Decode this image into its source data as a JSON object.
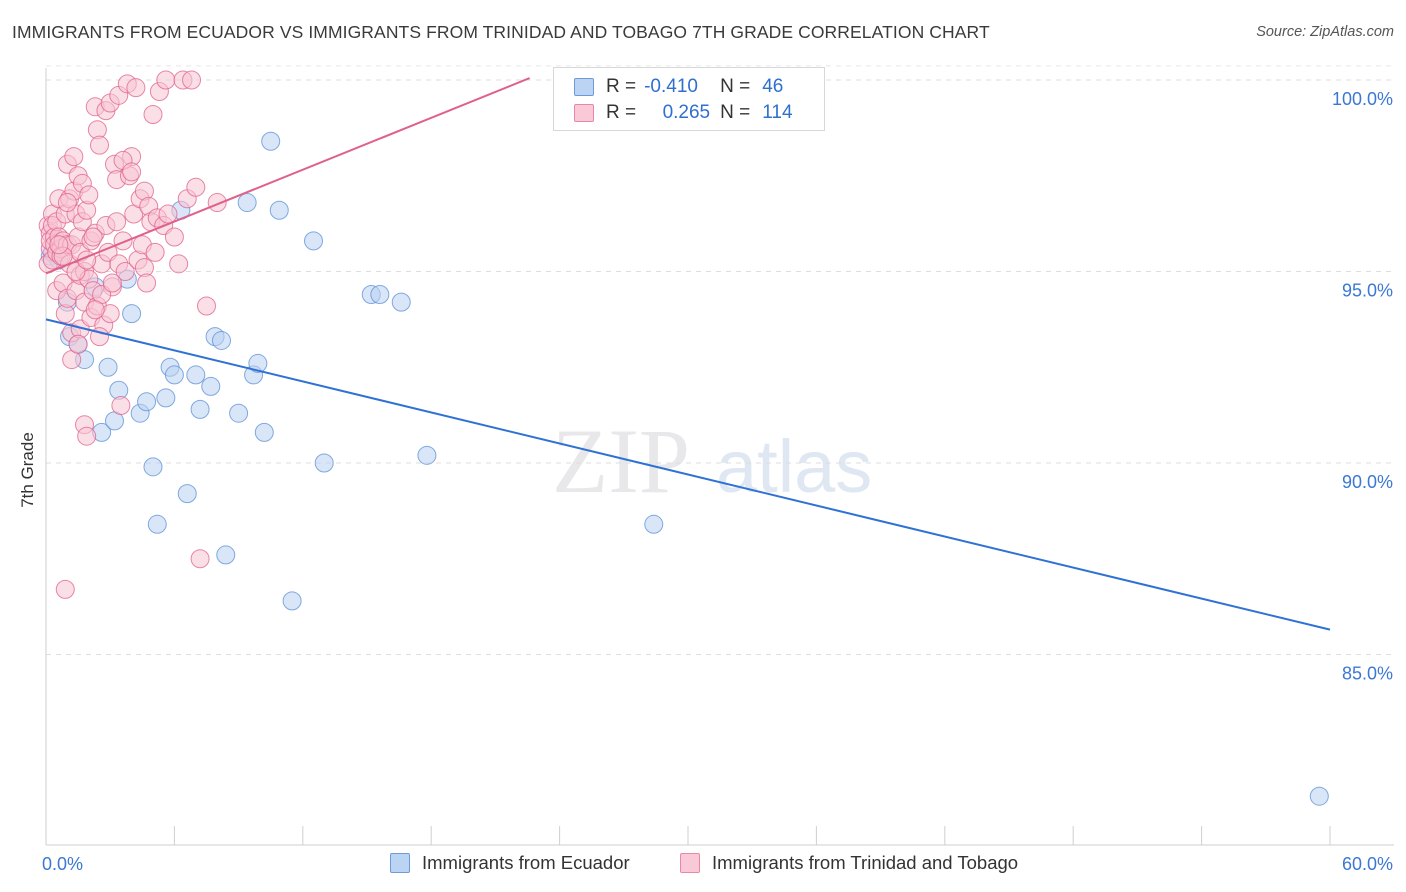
{
  "title": "IMMIGRANTS FROM ECUADOR VS IMMIGRANTS FROM TRINIDAD AND TOBAGO 7TH GRADE CORRELATION CHART",
  "source": "Source: ZipAtlas.com",
  "watermark": {
    "zip": "ZIP",
    "atlas": "atlas"
  },
  "legend": {
    "r_label": "R =",
    "n_label": "N =",
    "rows": [
      {
        "r": "-0.410",
        "n": "46",
        "color": "#a9c7ef"
      },
      {
        "r": "0.265",
        "n": "114",
        "color": "#f5b3c8"
      }
    ]
  },
  "bottom_legend": [
    "Immigrants from Ecuador",
    "Immigrants from Trinidad and Tobago"
  ],
  "chart_data": {
    "type": "scatter",
    "title": "IMMIGRANTS FROM ECUADOR VS IMMIGRANTS FROM TRINIDAD AND TOBAGO 7TH GRADE CORRELATION CHART",
    "xlabel": "",
    "ylabel": "7th Grade",
    "xlim": [
      0,
      60
    ],
    "ylim": [
      80.5,
      100.5
    ],
    "x_ticks": [
      "0.0%",
      "60.0%"
    ],
    "y_ticks": [
      {
        "value": 85,
        "label": "85.0%"
      },
      {
        "value": 90,
        "label": "90.0%"
      },
      {
        "value": 95,
        "label": "95.0%"
      },
      {
        "value": 100,
        "label": "100.0%"
      }
    ],
    "grid": "horizontal dashed",
    "legend_position": "top-center",
    "series": [
      {
        "name": "Immigrants from Ecuador",
        "color": "#5b8fd6",
        "fill": "#b9d2f2",
        "trend": {
          "x": [
            0,
            60
          ],
          "y": [
            93.75,
            85.65
          ]
        },
        "points": [
          [
            0.2,
            95.4
          ],
          [
            0.6,
            95.3
          ],
          [
            1.0,
            94.2
          ],
          [
            1.1,
            93.3
          ],
          [
            1.5,
            93.1
          ],
          [
            1.8,
            92.7
          ],
          [
            2.3,
            94.6
          ],
          [
            2.6,
            90.8
          ],
          [
            2.9,
            92.5
          ],
          [
            3.2,
            91.1
          ],
          [
            3.4,
            91.9
          ],
          [
            3.8,
            94.8
          ],
          [
            4.0,
            93.9
          ],
          [
            4.4,
            91.3
          ],
          [
            4.7,
            91.6
          ],
          [
            5.0,
            89.9
          ],
          [
            5.2,
            88.4
          ],
          [
            5.6,
            91.7
          ],
          [
            5.8,
            92.5
          ],
          [
            6.0,
            92.3
          ],
          [
            6.3,
            96.6
          ],
          [
            6.6,
            89.2
          ],
          [
            7.0,
            92.3
          ],
          [
            7.2,
            91.4
          ],
          [
            7.7,
            92.0
          ],
          [
            7.9,
            93.3
          ],
          [
            8.2,
            93.2
          ],
          [
            8.4,
            87.6
          ],
          [
            9.0,
            91.3
          ],
          [
            9.4,
            96.8
          ],
          [
            9.7,
            92.3
          ],
          [
            9.9,
            92.6
          ],
          [
            10.2,
            90.8
          ],
          [
            10.5,
            98.4
          ],
          [
            10.9,
            96.6
          ],
          [
            11.5,
            86.4
          ],
          [
            12.5,
            95.8
          ],
          [
            13.0,
            90.0
          ],
          [
            15.2,
            94.4
          ],
          [
            15.6,
            94.4
          ],
          [
            16.6,
            94.2
          ],
          [
            17.8,
            90.2
          ],
          [
            25.3,
            100.0
          ],
          [
            28.4,
            88.4
          ],
          [
            59.5,
            81.3
          ],
          [
            0.3,
            95.5
          ]
        ]
      },
      {
        "name": "Immigrants from Trinidad and Tobago",
        "color": "#e0608c",
        "fill": "#f8c4d4",
        "trend": {
          "x": [
            0,
            22.6
          ],
          "y": [
            94.95,
            100.05
          ]
        },
        "points": [
          [
            0.1,
            95.2
          ],
          [
            0.1,
            96.2
          ],
          [
            0.2,
            95.6
          ],
          [
            0.2,
            96.0
          ],
          [
            0.2,
            95.8
          ],
          [
            0.3,
            96.5
          ],
          [
            0.3,
            95.3
          ],
          [
            0.3,
            96.2
          ],
          [
            0.4,
            95.9
          ],
          [
            0.4,
            95.7
          ],
          [
            0.5,
            96.3
          ],
          [
            0.5,
            94.5
          ],
          [
            0.5,
            95.5
          ],
          [
            0.6,
            95.9
          ],
          [
            0.6,
            96.9
          ],
          [
            0.7,
            95.6
          ],
          [
            0.7,
            95.4
          ],
          [
            0.8,
            94.7
          ],
          [
            0.8,
            95.8
          ],
          [
            0.9,
            93.9
          ],
          [
            0.9,
            96.5
          ],
          [
            1.0,
            95.7
          ],
          [
            1.0,
            97.8
          ],
          [
            1.0,
            94.3
          ],
          [
            1.1,
            95.2
          ],
          [
            1.1,
            96.9
          ],
          [
            1.2,
            93.4
          ],
          [
            1.2,
            95.7
          ],
          [
            1.3,
            97.1
          ],
          [
            1.3,
            98.0
          ],
          [
            1.4,
            94.5
          ],
          [
            1.4,
            96.5
          ],
          [
            1.5,
            95.9
          ],
          [
            1.5,
            97.5
          ],
          [
            1.6,
            93.5
          ],
          [
            1.6,
            94.9
          ],
          [
            1.6,
            95.5
          ],
          [
            1.7,
            96.3
          ],
          [
            1.7,
            97.3
          ],
          [
            1.8,
            94.2
          ],
          [
            1.8,
            95.0
          ],
          [
            1.8,
            91.0
          ],
          [
            1.9,
            90.7
          ],
          [
            1.9,
            96.6
          ],
          [
            2.0,
            94.8
          ],
          [
            2.0,
            97.0
          ],
          [
            2.1,
            95.8
          ],
          [
            2.1,
            93.8
          ],
          [
            2.2,
            94.5
          ],
          [
            2.3,
            99.3
          ],
          [
            2.3,
            96.0
          ],
          [
            2.4,
            98.7
          ],
          [
            2.4,
            94.1
          ],
          [
            2.5,
            98.3
          ],
          [
            2.6,
            95.2
          ],
          [
            2.7,
            93.6
          ],
          [
            2.8,
            99.2
          ],
          [
            2.8,
            96.2
          ],
          [
            2.9,
            95.5
          ],
          [
            3.0,
            93.9
          ],
          [
            3.0,
            99.4
          ],
          [
            3.1,
            94.6
          ],
          [
            3.2,
            97.8
          ],
          [
            3.3,
            96.3
          ],
          [
            3.3,
            97.4
          ],
          [
            3.4,
            99.6
          ],
          [
            3.4,
            95.2
          ],
          [
            3.5,
            91.5
          ],
          [
            3.6,
            95.8
          ],
          [
            3.7,
            95.0
          ],
          [
            3.8,
            99.9
          ],
          [
            3.9,
            97.5
          ],
          [
            4.0,
            98.0
          ],
          [
            4.1,
            96.5
          ],
          [
            4.2,
            99.8
          ],
          [
            4.3,
            95.3
          ],
          [
            4.4,
            96.9
          ],
          [
            4.5,
            95.7
          ],
          [
            4.6,
            97.1
          ],
          [
            4.6,
            95.1
          ],
          [
            4.7,
            94.7
          ],
          [
            4.8,
            96.7
          ],
          [
            4.9,
            96.3
          ],
          [
            5.0,
            99.1
          ],
          [
            5.1,
            95.5
          ],
          [
            5.2,
            96.4
          ],
          [
            5.3,
            99.7
          ],
          [
            5.5,
            96.2
          ],
          [
            5.6,
            100.0
          ],
          [
            5.7,
            96.5
          ],
          [
            6.0,
            95.9
          ],
          [
            6.2,
            95.2
          ],
          [
            6.4,
            100.0
          ],
          [
            6.6,
            96.9
          ],
          [
            6.8,
            100.0
          ],
          [
            7.0,
            97.2
          ],
          [
            7.2,
            87.5
          ],
          [
            7.5,
            94.1
          ],
          [
            8.0,
            96.8
          ],
          [
            0.9,
            86.7
          ],
          [
            1.2,
            92.7
          ],
          [
            2.5,
            93.3
          ],
          [
            3.6,
            97.9
          ],
          [
            1.4,
            95.0
          ],
          [
            0.8,
            95.4
          ],
          [
            1.0,
            96.8
          ],
          [
            2.2,
            95.9
          ],
          [
            4.0,
            97.6
          ],
          [
            2.6,
            94.4
          ],
          [
            0.6,
            95.7
          ],
          [
            1.9,
            95.3
          ],
          [
            3.1,
            94.7
          ],
          [
            1.5,
            93.1
          ],
          [
            2.3,
            94.0
          ]
        ]
      }
    ]
  }
}
